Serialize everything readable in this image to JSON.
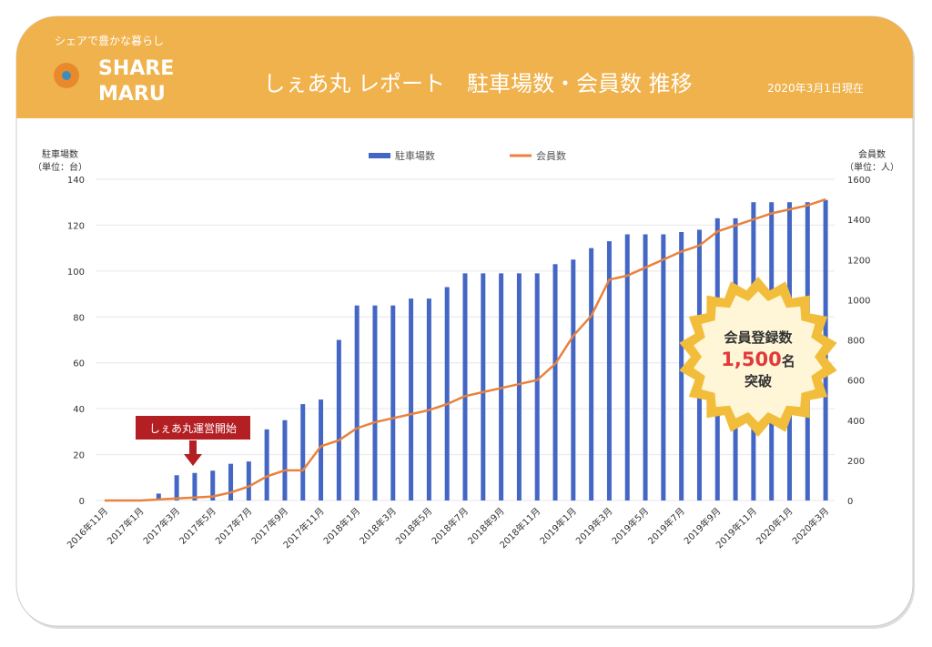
{
  "header": {
    "tagline": "シェアで豊かな暮らし",
    "logo_line1": "SHARE",
    "logo_line2": "MARU",
    "title": "しぇあ丸 レポート　駐車場数・会員数 推移",
    "date": "2020年3月1日現在"
  },
  "chart_data": {
    "type": "bar-line",
    "categories": [
      "2016年11月",
      null,
      "2017年1月",
      null,
      "2017年3月",
      null,
      "2017年5月",
      null,
      "2017年7月",
      null,
      "2017年9月",
      null,
      "2017年11月",
      null,
      "2018年1月",
      null,
      "2018年3月",
      null,
      "2018年5月",
      null,
      "2018年7月",
      null,
      "2018年9月",
      null,
      "2018年11月",
      null,
      "2019年1月",
      null,
      "2019年3月",
      null,
      "2019年5月",
      null,
      "2019年7月",
      null,
      "2019年9月",
      null,
      "2019年11月",
      null,
      "2020年1月",
      null,
      "2020年3月"
    ],
    "series": [
      {
        "name": "駐車場数",
        "type": "bar",
        "color": "#4466c4",
        "values": [
          0,
          0,
          0,
          3,
          11,
          12,
          13,
          16,
          17,
          31,
          35,
          42,
          44,
          70,
          85,
          85,
          85,
          88,
          88,
          93,
          99,
          99,
          99,
          99,
          99,
          103,
          105,
          110,
          113,
          116,
          116,
          116,
          117,
          118,
          123,
          123,
          130,
          130,
          130,
          130,
          131
        ]
      },
      {
        "name": "会員数",
        "type": "line",
        "axis": "y2",
        "color": "#e8823c",
        "values": [
          0,
          0,
          0,
          5,
          10,
          15,
          20,
          40,
          70,
          120,
          150,
          150,
          270,
          300,
          360,
          390,
          410,
          430,
          450,
          480,
          520,
          540,
          560,
          580,
          600,
          680,
          820,
          920,
          1100,
          1120,
          1160,
          1200,
          1240,
          1270,
          1340,
          1370,
          1400,
          1430,
          1450,
          1470,
          1500
        ]
      }
    ],
    "ylim": [
      0,
      140
    ],
    "yticks": [
      0,
      20,
      40,
      60,
      80,
      100,
      120,
      140
    ],
    "y2lim": [
      0,
      1600
    ],
    "y2ticks": [
      0,
      200,
      400,
      600,
      800,
      1000,
      1200,
      1400,
      1600
    ],
    "ylabel": "駐車場数",
    "ylabel_unit": "（単位：台）",
    "y2label": "会員数",
    "y2label_unit": "（単位：人）",
    "grid": true,
    "legend": "top",
    "annotation": "しぇあ丸運営開始",
    "badge": {
      "line1": "会員登録数",
      "number": "1,500",
      "unit": "名",
      "line2": "突破"
    }
  }
}
